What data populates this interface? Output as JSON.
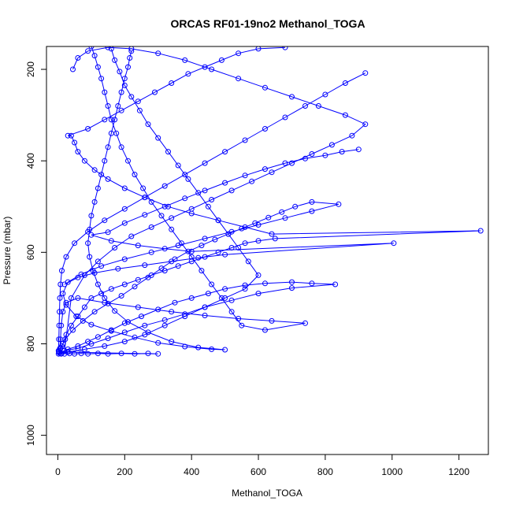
{
  "chart_data": {
    "type": "line",
    "title": "ORCAS RF01-19no2 Methanol_TOGA",
    "xlabel": "Methanol_TOGA",
    "ylabel": "Pressure (mbar)",
    "xlim": [
      -34,
      1288
    ],
    "ylim": [
      1042,
      150
    ],
    "y_reversed": true,
    "x_ticks": [
      0,
      200,
      400,
      600,
      800,
      1000,
      1200
    ],
    "y_ticks": [
      200,
      400,
      600,
      800,
      1000
    ],
    "grid": false,
    "legend": "none",
    "series_color": "#0000ff",
    "marker": "open-circle",
    "series": [
      {
        "points": [
          [
            2,
            822
          ],
          [
            10,
            821
          ],
          [
            20,
            822
          ],
          [
            35,
            821
          ],
          [
            50,
            822
          ],
          [
            70,
            821
          ],
          [
            90,
            822
          ],
          [
            120,
            821
          ],
          [
            150,
            822
          ],
          [
            190,
            821
          ],
          [
            230,
            822
          ],
          [
            270,
            821
          ],
          [
            300,
            822
          ],
          [
            3,
            818
          ],
          [
            8,
            810
          ],
          [
            15,
            800
          ],
          [
            25,
            780
          ],
          [
            40,
            760
          ],
          [
            60,
            740
          ],
          [
            80,
            720
          ],
          [
            100,
            700
          ],
          [
            130,
            690
          ],
          [
            160,
            680
          ],
          [
            200,
            670
          ],
          [
            240,
            660
          ],
          [
            280,
            650
          ],
          [
            320,
            640
          ],
          [
            360,
            630
          ],
          [
            400,
            620
          ],
          [
            440,
            610
          ],
          [
            480,
            600
          ],
          [
            520,
            590
          ],
          [
            560,
            580
          ],
          [
            600,
            575
          ],
          [
            650,
            570
          ],
          [
            1265,
            553
          ],
          [
            640,
            560
          ],
          [
            560,
            545
          ],
          [
            480,
            530
          ],
          [
            400,
            515
          ],
          [
            330,
            500
          ],
          [
            260,
            480
          ],
          [
            200,
            460
          ],
          [
            150,
            440
          ],
          [
            110,
            420
          ],
          [
            80,
            400
          ],
          [
            60,
            380
          ],
          [
            50,
            360
          ],
          [
            40,
            345
          ],
          [
            30,
            345
          ],
          [
            90,
            330
          ],
          [
            140,
            310
          ],
          [
            190,
            290
          ],
          [
            240,
            270
          ],
          [
            290,
            250
          ],
          [
            340,
            230
          ],
          [
            390,
            210
          ],
          [
            440,
            195
          ],
          [
            490,
            180
          ],
          [
            540,
            165
          ],
          [
            600,
            155
          ],
          [
            680,
            152
          ]
        ]
      },
      {
        "points": [
          [
            5,
            820
          ],
          [
            30,
            812
          ],
          [
            60,
            805
          ],
          [
            90,
            795
          ],
          [
            120,
            785
          ],
          [
            160,
            770
          ],
          [
            200,
            755
          ],
          [
            250,
            740
          ],
          [
            300,
            725
          ],
          [
            350,
            710
          ],
          [
            400,
            700
          ],
          [
            450,
            690
          ],
          [
            500,
            680
          ],
          [
            560,
            672
          ],
          [
            620,
            668
          ],
          [
            700,
            665
          ],
          [
            760,
            668
          ],
          [
            830,
            670
          ],
          [
            700,
            678
          ],
          [
            600,
            690
          ],
          [
            520,
            705
          ],
          [
            440,
            720
          ],
          [
            380,
            735
          ],
          [
            320,
            748
          ],
          [
            260,
            760
          ],
          [
            200,
            775
          ],
          [
            150,
            788
          ],
          [
            100,
            800
          ],
          [
            60,
            810
          ],
          [
            20,
            815
          ],
          [
            40,
            700
          ],
          [
            80,
            650
          ],
          [
            120,
            620
          ],
          [
            170,
            590
          ],
          [
            220,
            565
          ],
          [
            280,
            545
          ],
          [
            340,
            525
          ],
          [
            400,
            505
          ],
          [
            460,
            485
          ],
          [
            520,
            465
          ],
          [
            580,
            445
          ],
          [
            640,
            425
          ],
          [
            700,
            405
          ],
          [
            760,
            385
          ],
          [
            820,
            365
          ],
          [
            880,
            345
          ],
          [
            920,
            320
          ],
          [
            860,
            300
          ],
          [
            780,
            280
          ],
          [
            700,
            260
          ],
          [
            620,
            240
          ],
          [
            540,
            220
          ],
          [
            460,
            200
          ],
          [
            380,
            180
          ],
          [
            300,
            165
          ],
          [
            220,
            155
          ],
          [
            150,
            152
          ],
          [
            90,
            160
          ],
          [
            60,
            175
          ],
          [
            45,
            200
          ]
        ]
      },
      {
        "points": [
          [
            4,
            816
          ],
          [
            12,
            805
          ],
          [
            22,
            790
          ],
          [
            45,
            770
          ],
          [
            75,
            750
          ],
          [
            110,
            730
          ],
          [
            150,
            712
          ],
          [
            190,
            695
          ],
          [
            230,
            675
          ],
          [
            270,
            655
          ],
          [
            310,
            635
          ],
          [
            350,
            615
          ],
          [
            390,
            598
          ],
          [
            430,
            585
          ],
          [
            470,
            572
          ],
          [
            510,
            560
          ],
          [
            550,
            548
          ],
          [
            590,
            536
          ],
          [
            630,
            524
          ],
          [
            670,
            512
          ],
          [
            710,
            500
          ],
          [
            760,
            490
          ],
          [
            840,
            495
          ],
          [
            760,
            510
          ],
          [
            680,
            525
          ],
          [
            600,
            540
          ],
          [
            520,
            555
          ],
          [
            440,
            570
          ],
          [
            360,
            585
          ],
          [
            280,
            600
          ],
          [
            200,
            615
          ],
          [
            130,
            630
          ],
          [
            70,
            648
          ],
          [
            30,
            665
          ],
          [
            15,
            690
          ],
          [
            25,
            715
          ],
          [
            55,
            740
          ],
          [
            100,
            758
          ],
          [
            160,
            772
          ],
          [
            230,
            786
          ],
          [
            300,
            798
          ],
          [
            380,
            806
          ],
          [
            460,
            812
          ],
          [
            500,
            813
          ],
          [
            420,
            808
          ],
          [
            340,
            795
          ],
          [
            270,
            775
          ],
          [
            210,
            752
          ],
          [
            170,
            728
          ],
          [
            140,
            700
          ],
          [
            120,
            670
          ],
          [
            105,
            640
          ],
          [
            95,
            610
          ],
          [
            90,
            580
          ],
          [
            95,
            550
          ],
          [
            100,
            520
          ],
          [
            110,
            490
          ],
          [
            120,
            460
          ],
          [
            130,
            430
          ],
          [
            140,
            400
          ],
          [
            150,
            370
          ],
          [
            160,
            340
          ],
          [
            170,
            310
          ],
          [
            180,
            280
          ],
          [
            190,
            250
          ],
          [
            200,
            220
          ],
          [
            210,
            195
          ],
          [
            215,
            175
          ],
          [
            220,
            160
          ]
        ]
      },
      {
        "points": [
          [
            160,
            155
          ],
          [
            170,
            180
          ],
          [
            185,
            205
          ],
          [
            200,
            235
          ],
          [
            220,
            260
          ],
          [
            245,
            290
          ],
          [
            270,
            320
          ],
          [
            300,
            350
          ],
          [
            330,
            380
          ],
          [
            360,
            410
          ],
          [
            390,
            440
          ],
          [
            420,
            470
          ],
          [
            450,
            500
          ],
          [
            480,
            530
          ],
          [
            510,
            560
          ],
          [
            540,
            590
          ],
          [
            570,
            620
          ],
          [
            600,
            650
          ],
          [
            560,
            680
          ],
          [
            500,
            700
          ],
          [
            440,
            720
          ],
          [
            380,
            740
          ],
          [
            320,
            760
          ],
          [
            260,
            780
          ],
          [
            200,
            795
          ],
          [
            140,
            805
          ],
          [
            80,
            812
          ],
          [
            30,
            818
          ],
          [
            10,
            822
          ]
        ]
      },
      {
        "points": [
          [
            100,
            150
          ],
          [
            110,
            170
          ],
          [
            120,
            195
          ],
          [
            130,
            220
          ],
          [
            140,
            250
          ],
          [
            150,
            280
          ],
          [
            160,
            310
          ],
          [
            175,
            340
          ],
          [
            190,
            370
          ],
          [
            210,
            400
          ],
          [
            230,
            430
          ],
          [
            255,
            460
          ],
          [
            280,
            490
          ],
          [
            310,
            520
          ],
          [
            340,
            550
          ],
          [
            370,
            580
          ],
          [
            400,
            610
          ],
          [
            430,
            640
          ],
          [
            460,
            670
          ],
          [
            490,
            700
          ],
          [
            520,
            730
          ],
          [
            550,
            760
          ],
          [
            620,
            770
          ],
          [
            740,
            755
          ],
          [
            640,
            750
          ],
          [
            540,
            745
          ],
          [
            440,
            738
          ],
          [
            340,
            730
          ],
          [
            240,
            720
          ],
          [
            140,
            710
          ],
          [
            60,
            700
          ],
          [
            25,
            710
          ],
          [
            15,
            730
          ],
          [
            10,
            760
          ],
          [
            8,
            790
          ],
          [
            6,
            810
          ]
        ]
      },
      {
        "points": [
          [
            900,
            375
          ],
          [
            850,
            380
          ],
          [
            800,
            388
          ],
          [
            740,
            395
          ],
          [
            680,
            405
          ],
          [
            620,
            418
          ],
          [
            560,
            432
          ],
          [
            500,
            448
          ],
          [
            440,
            465
          ],
          [
            380,
            482
          ],
          [
            320,
            500
          ],
          [
            260,
            518
          ],
          [
            200,
            536
          ],
          [
            150,
            556
          ],
          [
            100,
            562
          ],
          [
            160,
            575
          ],
          [
            240,
            585
          ],
          [
            320,
            592
          ],
          [
            400,
            598
          ],
          [
            1005,
            580
          ],
          [
            500,
            605
          ],
          [
            420,
            612
          ],
          [
            340,
            620
          ],
          [
            260,
            628
          ],
          [
            180,
            636
          ],
          [
            110,
            645
          ],
          [
            60,
            655
          ],
          [
            20,
            670
          ]
        ]
      },
      {
        "points": [
          [
            920,
            208
          ],
          [
            860,
            230
          ],
          [
            800,
            255
          ],
          [
            740,
            280
          ],
          [
            680,
            305
          ],
          [
            620,
            330
          ],
          [
            560,
            355
          ],
          [
            500,
            380
          ],
          [
            440,
            405
          ],
          [
            380,
            430
          ],
          [
            320,
            455
          ],
          [
            260,
            480
          ],
          [
            200,
            505
          ],
          [
            140,
            530
          ],
          [
            90,
            555
          ],
          [
            50,
            580
          ],
          [
            25,
            610
          ],
          [
            12,
            640
          ],
          [
            8,
            670
          ],
          [
            6,
            700
          ],
          [
            5,
            730
          ],
          [
            4,
            760
          ],
          [
            3,
            790
          ],
          [
            2,
            815
          ]
        ]
      }
    ]
  }
}
